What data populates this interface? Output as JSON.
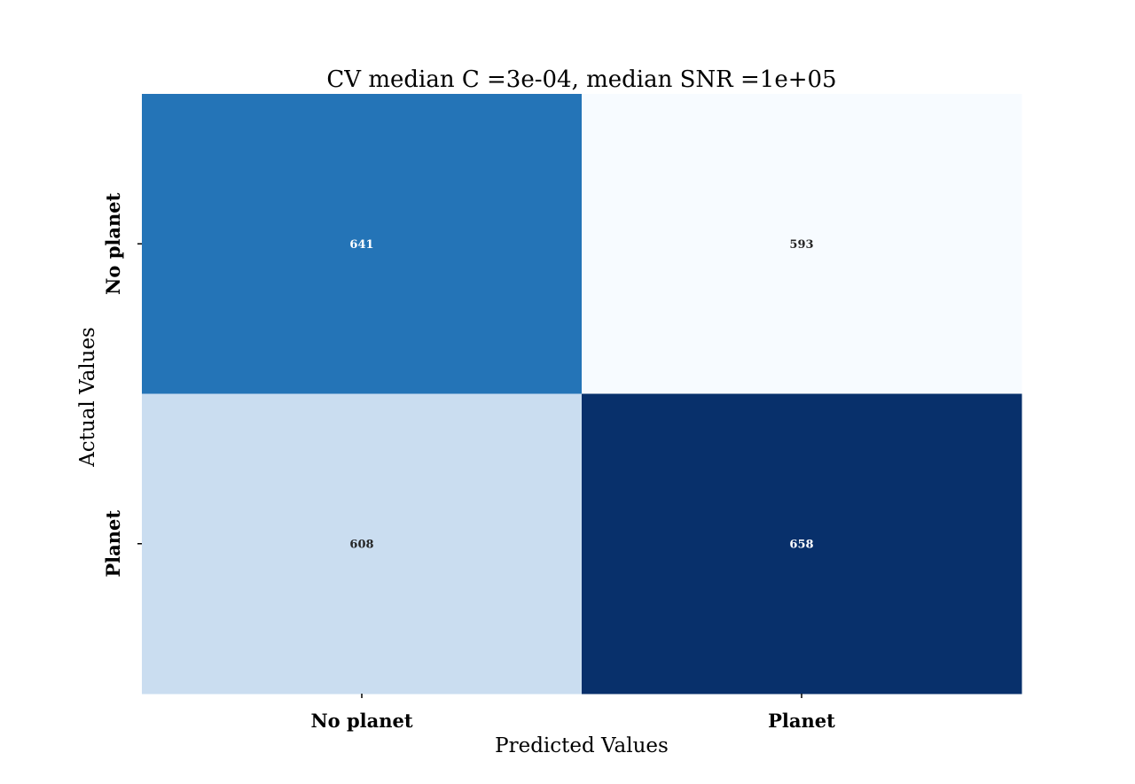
{
  "chart_data": {
    "type": "heatmap",
    "title": "CV median C =3e-04, median SNR =1e+05",
    "xlabel": "Predicted Values",
    "ylabel": "Actual Values",
    "x_categories": [
      "No planet",
      "Planet"
    ],
    "y_categories": [
      "No planet",
      "Planet"
    ],
    "values": [
      [
        641,
        593
      ],
      [
        608,
        658
      ]
    ],
    "colormap": "Blues",
    "colors": {
      "low": "#f7fbff",
      "mid_light": "#c6dbef",
      "mid": "#2171b5",
      "high": "#08306b"
    },
    "colorbar": false,
    "grid": false
  }
}
